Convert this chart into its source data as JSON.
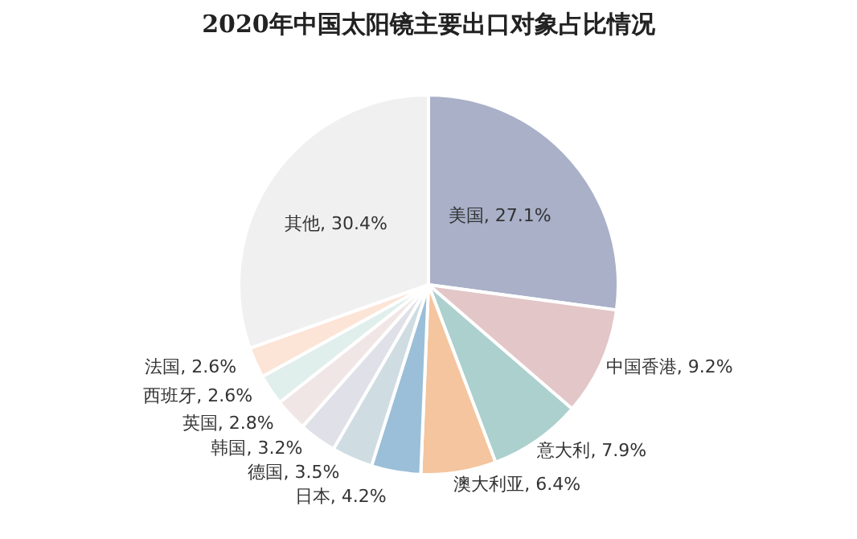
{
  "chart_data": {
    "type": "pie",
    "title": "2020年中国太阳镜主要出口对象占比情况",
    "categories": [
      "美国",
      "中国香港",
      "意大利",
      "澳大利亚",
      "日本",
      "德国",
      "韩国",
      "英国",
      "西班牙",
      "法国",
      "其他"
    ],
    "values": [
      27.1,
      9.2,
      7.9,
      6.4,
      4.2,
      3.5,
      3.2,
      2.8,
      2.6,
      2.6,
      30.4
    ],
    "value_labels": [
      "27.1%",
      "9.2%",
      "7.9%",
      "6.4%",
      "4.2%",
      "3.5%",
      "3.2%",
      "2.8%",
      "2.6%",
      "2.6%",
      "30.4%"
    ],
    "colors": [
      "#a9b0c8",
      "#e3c6c8",
      "#abd0ce",
      "#f4c59e",
      "#9bbfd8",
      "#cfdde3",
      "#dfe0e8",
      "#f1e6e6",
      "#e0eeec",
      "#fce4d6",
      "#f0f0f0"
    ],
    "legend": false
  }
}
